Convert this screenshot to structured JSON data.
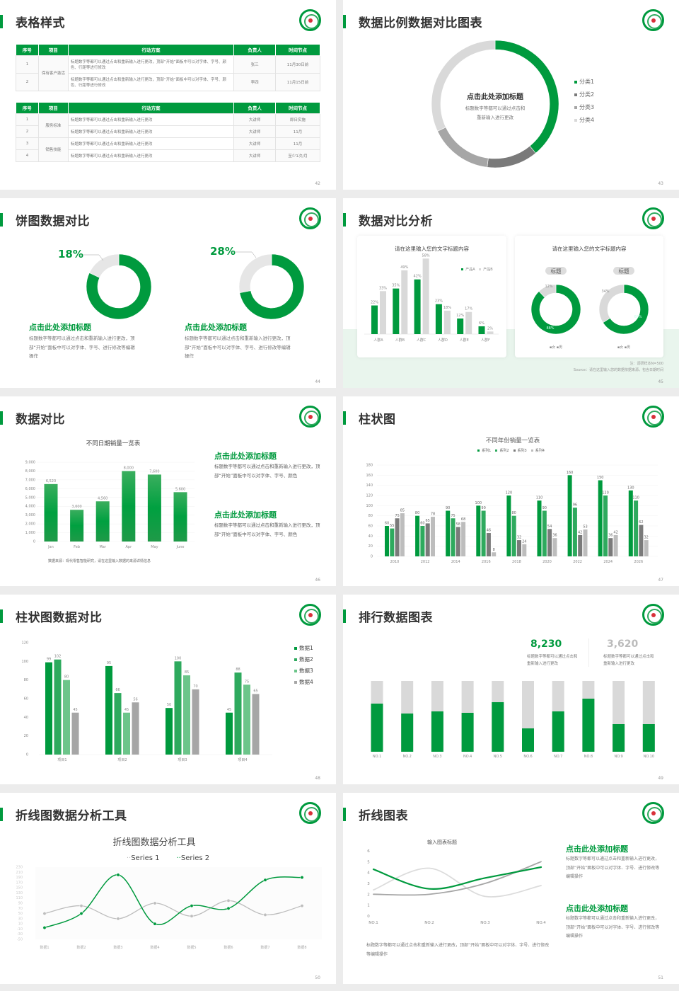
{
  "colors": {
    "green": "#009a3e",
    "green2": "#2eaa5e",
    "green3": "#6cc58a",
    "gray_dark": "#7a7a7a",
    "gray": "#a6a6a6",
    "gray_light": "#d9d9d9"
  },
  "logo_icon": "school-emblem-icon",
  "s42": {
    "title": "表格样式",
    "page": "42",
    "headers": [
      "序号",
      "项目",
      "行动方案",
      "负责人",
      "时间节点"
    ],
    "table1": {
      "group": "保有客户激活",
      "rows": [
        [
          "1",
          "标题数字等都可以通过点击和重新输入进行更改，顶部“开始”面板中可以对字体、字号、颜色、行距等进行修改",
          "张三",
          "11月30日前"
        ],
        [
          "2",
          "标题数字等都可以通过点击和重新输入进行更改，顶部“开始”面板中可以对字体、字号、颜色、行距等进行修改",
          "李四",
          "11月15日前"
        ]
      ]
    },
    "table2": {
      "groups": [
        "服务标准",
        "销售技能"
      ],
      "rows": [
        [
          "1",
          "标题数字等都可以通过点击和重新输入进行更改",
          "大讲师",
          "即日实施"
        ],
        [
          "2",
          "标题数字等都可以通过点击和重新输入进行更改",
          "大讲师",
          "11月"
        ],
        [
          "3",
          "标题数字等都可以通过点击和重新输入进行更改",
          "大讲师",
          "11月"
        ],
        [
          "4",
          "标题数字等都可以通过点击和重新输入进行更改",
          "大讲师",
          "至少1次/月"
        ]
      ]
    }
  },
  "s43": {
    "title": "数据比例数据对比图表",
    "page": "43",
    "center_title": "点击此处添加标题",
    "center_text1": "标题数字等都可以通过点击和",
    "center_text2": "重新输入进行更改",
    "chart_data": {
      "type": "pie",
      "categories": [
        "分类1",
        "分类2",
        "分类3",
        "分类4"
      ],
      "values": [
        39,
        13,
        16,
        32
      ],
      "colors": [
        "#009a3e",
        "#7a7a7a",
        "#a6a6a6",
        "#d9d9d9"
      ],
      "legend": "right"
    }
  },
  "s44": {
    "title": "饼图数据对比",
    "page": "44",
    "items": [
      {
        "pct": "18%",
        "value": 18,
        "heading": "点击此处添加标题",
        "text": "标题数字等都可以通过点击和重新输入进行更改，顶部“开始”面板中可以对字体、字号、进行修改等编辑操作"
      },
      {
        "pct": "28%",
        "value": 28,
        "heading": "点击此处添加标题",
        "text": "标题数字等都可以通过点击和重新输入进行更改，顶部“开始”面板中可以对字体、字号、进行修改等编辑操作"
      }
    ]
  },
  "s45": {
    "title": "数据对比分析",
    "page": "45",
    "left_title": "请在这里输入您的文字标题内容",
    "right_title": "请在这里输入您的文字标题内容",
    "note": "注：调研样本N=500",
    "source": "Source：请在这里输入您的数据依据来源，包含日期时间",
    "chart_data": [
      {
        "type": "bar",
        "categories": [
          "人群A",
          "人群B",
          "人群C",
          "人群D",
          "人群E",
          "人群F"
        ],
        "series": [
          {
            "name": "产品A",
            "values": [
              22,
              35,
              42,
              23,
              12,
              6
            ]
          },
          {
            "name": "产品B",
            "values": [
              33,
              49,
              58,
              18,
              17,
              2
            ]
          }
        ],
        "unit": "%",
        "legend": "top-right"
      },
      {
        "type": "pie",
        "label": "标题",
        "categories": [
          "女",
          "男"
        ],
        "values": [
          88,
          12
        ]
      },
      {
        "type": "pie",
        "label": "标题",
        "categories": [
          "女",
          "男"
        ],
        "values": [
          66,
          34
        ]
      }
    ]
  },
  "s46": {
    "title": "数据对比",
    "page": "46",
    "source": "数据来源：现代零售智能研究，请在这里输入数据的来源详情信息",
    "blocks": [
      {
        "heading": "点击此处添加标题",
        "text": "标题数字等都可以通过点击和重新输入进行更改，顶部“开始”面板中可以对字体、字号、颜色"
      },
      {
        "heading": "点击此处添加标题",
        "text": "标题数字等都可以通过点击和重新输入进行更改，顶部“开始”面板中可以对字体、字号、颜色"
      }
    ],
    "chart_data": {
      "type": "bar",
      "title": "不同日期销量一览表",
      "categories": [
        "Jan",
        "Feb",
        "Mar",
        "Apr",
        "May",
        "June"
      ],
      "values": [
        6520,
        3600,
        4560,
        8000,
        7600,
        5600
      ],
      "labels": [
        "6,520",
        "3,600",
        "4,560",
        "8,000",
        "7,600",
        "5,600"
      ],
      "ylim": [
        0,
        9000
      ],
      "yticks": [
        "0",
        "1,000",
        "2,000",
        "3,000",
        "4,000",
        "5,000",
        "6,000",
        "7,000",
        "8,000",
        "9,000"
      ],
      "grid": true
    }
  },
  "s47": {
    "title": "柱状图",
    "page": "47",
    "chart_data": {
      "type": "bar",
      "title": "不同年份销量一览表",
      "categories": [
        "2010",
        "2012",
        "2014",
        "2016",
        "2018",
        "2020",
        "2022",
        "2024",
        "2026"
      ],
      "series": [
        {
          "name": "系列1",
          "values": [
            60,
            80,
            90,
            100,
            120,
            110,
            160,
            150,
            130
          ]
        },
        {
          "name": "系列2",
          "values": [
            55,
            60,
            75,
            90,
            80,
            90,
            96,
            120,
            110
          ]
        },
        {
          "name": "系列3",
          "values": [
            75,
            65,
            58,
            46,
            32,
            54,
            42,
            36,
            62
          ]
        },
        {
          "name": "系列4",
          "values": [
            85,
            78,
            68,
            8,
            24,
            36,
            53,
            42,
            32
          ]
        }
      ],
      "ylim": [
        0,
        180
      ],
      "yticks": [
        0,
        20,
        40,
        60,
        80,
        100,
        120,
        140,
        160,
        180
      ],
      "legend": "top",
      "grid": true
    }
  },
  "s48": {
    "title": "柱状图数据对比",
    "page": "48",
    "chart_data": {
      "type": "bar",
      "categories": [
        "项目1",
        "项目2",
        "项目3",
        "项目4"
      ],
      "series": [
        {
          "name": "数据1",
          "values": [
            99,
            95,
            50,
            45
          ]
        },
        {
          "name": "数据2",
          "values": [
            102,
            66,
            100,
            88
          ]
        },
        {
          "name": "数据3",
          "values": [
            80,
            45,
            85,
            75
          ]
        },
        {
          "name": "数据4",
          "values": [
            45,
            56,
            70,
            65
          ]
        }
      ],
      "ylim": [
        0,
        120
      ],
      "yticks": [
        0,
        20,
        40,
        60,
        80,
        100,
        120
      ],
      "legend": "right"
    }
  },
  "s49": {
    "title": "排行数据图表",
    "page": "49",
    "stat1": {
      "value": "8,230",
      "text": "标题数字等都可以通过点击和重新输入进行更改"
    },
    "stat2": {
      "value": "3,620",
      "text": "标题数字等都可以通过点击和重新输入进行更改"
    },
    "chart_data": {
      "type": "bar",
      "stacked": true,
      "categories": [
        "NO.1",
        "NO.2",
        "NO.3",
        "NO.4",
        "NO.5",
        "NO.6",
        "NO.7",
        "NO.8",
        "NO.9",
        "NO.10"
      ],
      "values": [
        68,
        54,
        57,
        55,
        70,
        33,
        57,
        75,
        39,
        39
      ],
      "max": 100
    }
  },
  "s50": {
    "title": "折线图数据分析工具",
    "page": "50",
    "chart_data": {
      "type": "line",
      "title": "折线图数据分析工具",
      "categories": [
        "数据1",
        "数据2",
        "数据3",
        "数据4",
        "数据5",
        "数据6",
        "数据7",
        "数据8"
      ],
      "series": [
        {
          "name": "Series 1",
          "values": [
            50,
            80,
            30,
            90,
            40,
            100,
            45,
            80
          ]
        },
        {
          "name": "Series 2",
          "values": [
            -5,
            50,
            200,
            10,
            80,
            70,
            180,
            190
          ]
        }
      ],
      "ylim": [
        -50,
        230
      ],
      "yticks": [
        -50,
        -30,
        -10,
        10,
        30,
        50,
        70,
        90,
        110,
        130,
        150,
        170,
        190,
        210,
        230
      ],
      "legend": "top"
    }
  },
  "s51": {
    "title": "折线图表",
    "page": "51",
    "bottom_text": "标题数字等都可以通过点击和重新输入进行更改，顶部“开始”面板中可以对字体、字号、进行修改等编辑操作",
    "blocks": [
      {
        "heading": "点击此处添加标题",
        "text": "标题数字等都可以通过点击和重新输入进行更改，顶部“开始”面板中可以对字体、字号、进行修改等编辑操作"
      },
      {
        "heading": "点击此处添加标题",
        "text": "标题数字等都可以通过点击和重新输入进行更改，顶部“开始”面板中可以对字体、字号、进行修改等编辑操作"
      }
    ],
    "chart_data": {
      "type": "line",
      "title": "输入图表标题",
      "categories": [
        "NO.1",
        "NO.2",
        "NO.3",
        "NO.4"
      ],
      "series": [
        {
          "values": [
            4.3,
            2.5,
            3.5,
            4.5
          ]
        },
        {
          "values": [
            2,
            2,
            3,
            5
          ]
        },
        {
          "values": [
            2.4,
            4.4,
            1.8,
            2.8
          ]
        }
      ],
      "ylim": [
        0,
        6
      ],
      "yticks": [
        0,
        1,
        2,
        3,
        4,
        5,
        6
      ]
    }
  }
}
